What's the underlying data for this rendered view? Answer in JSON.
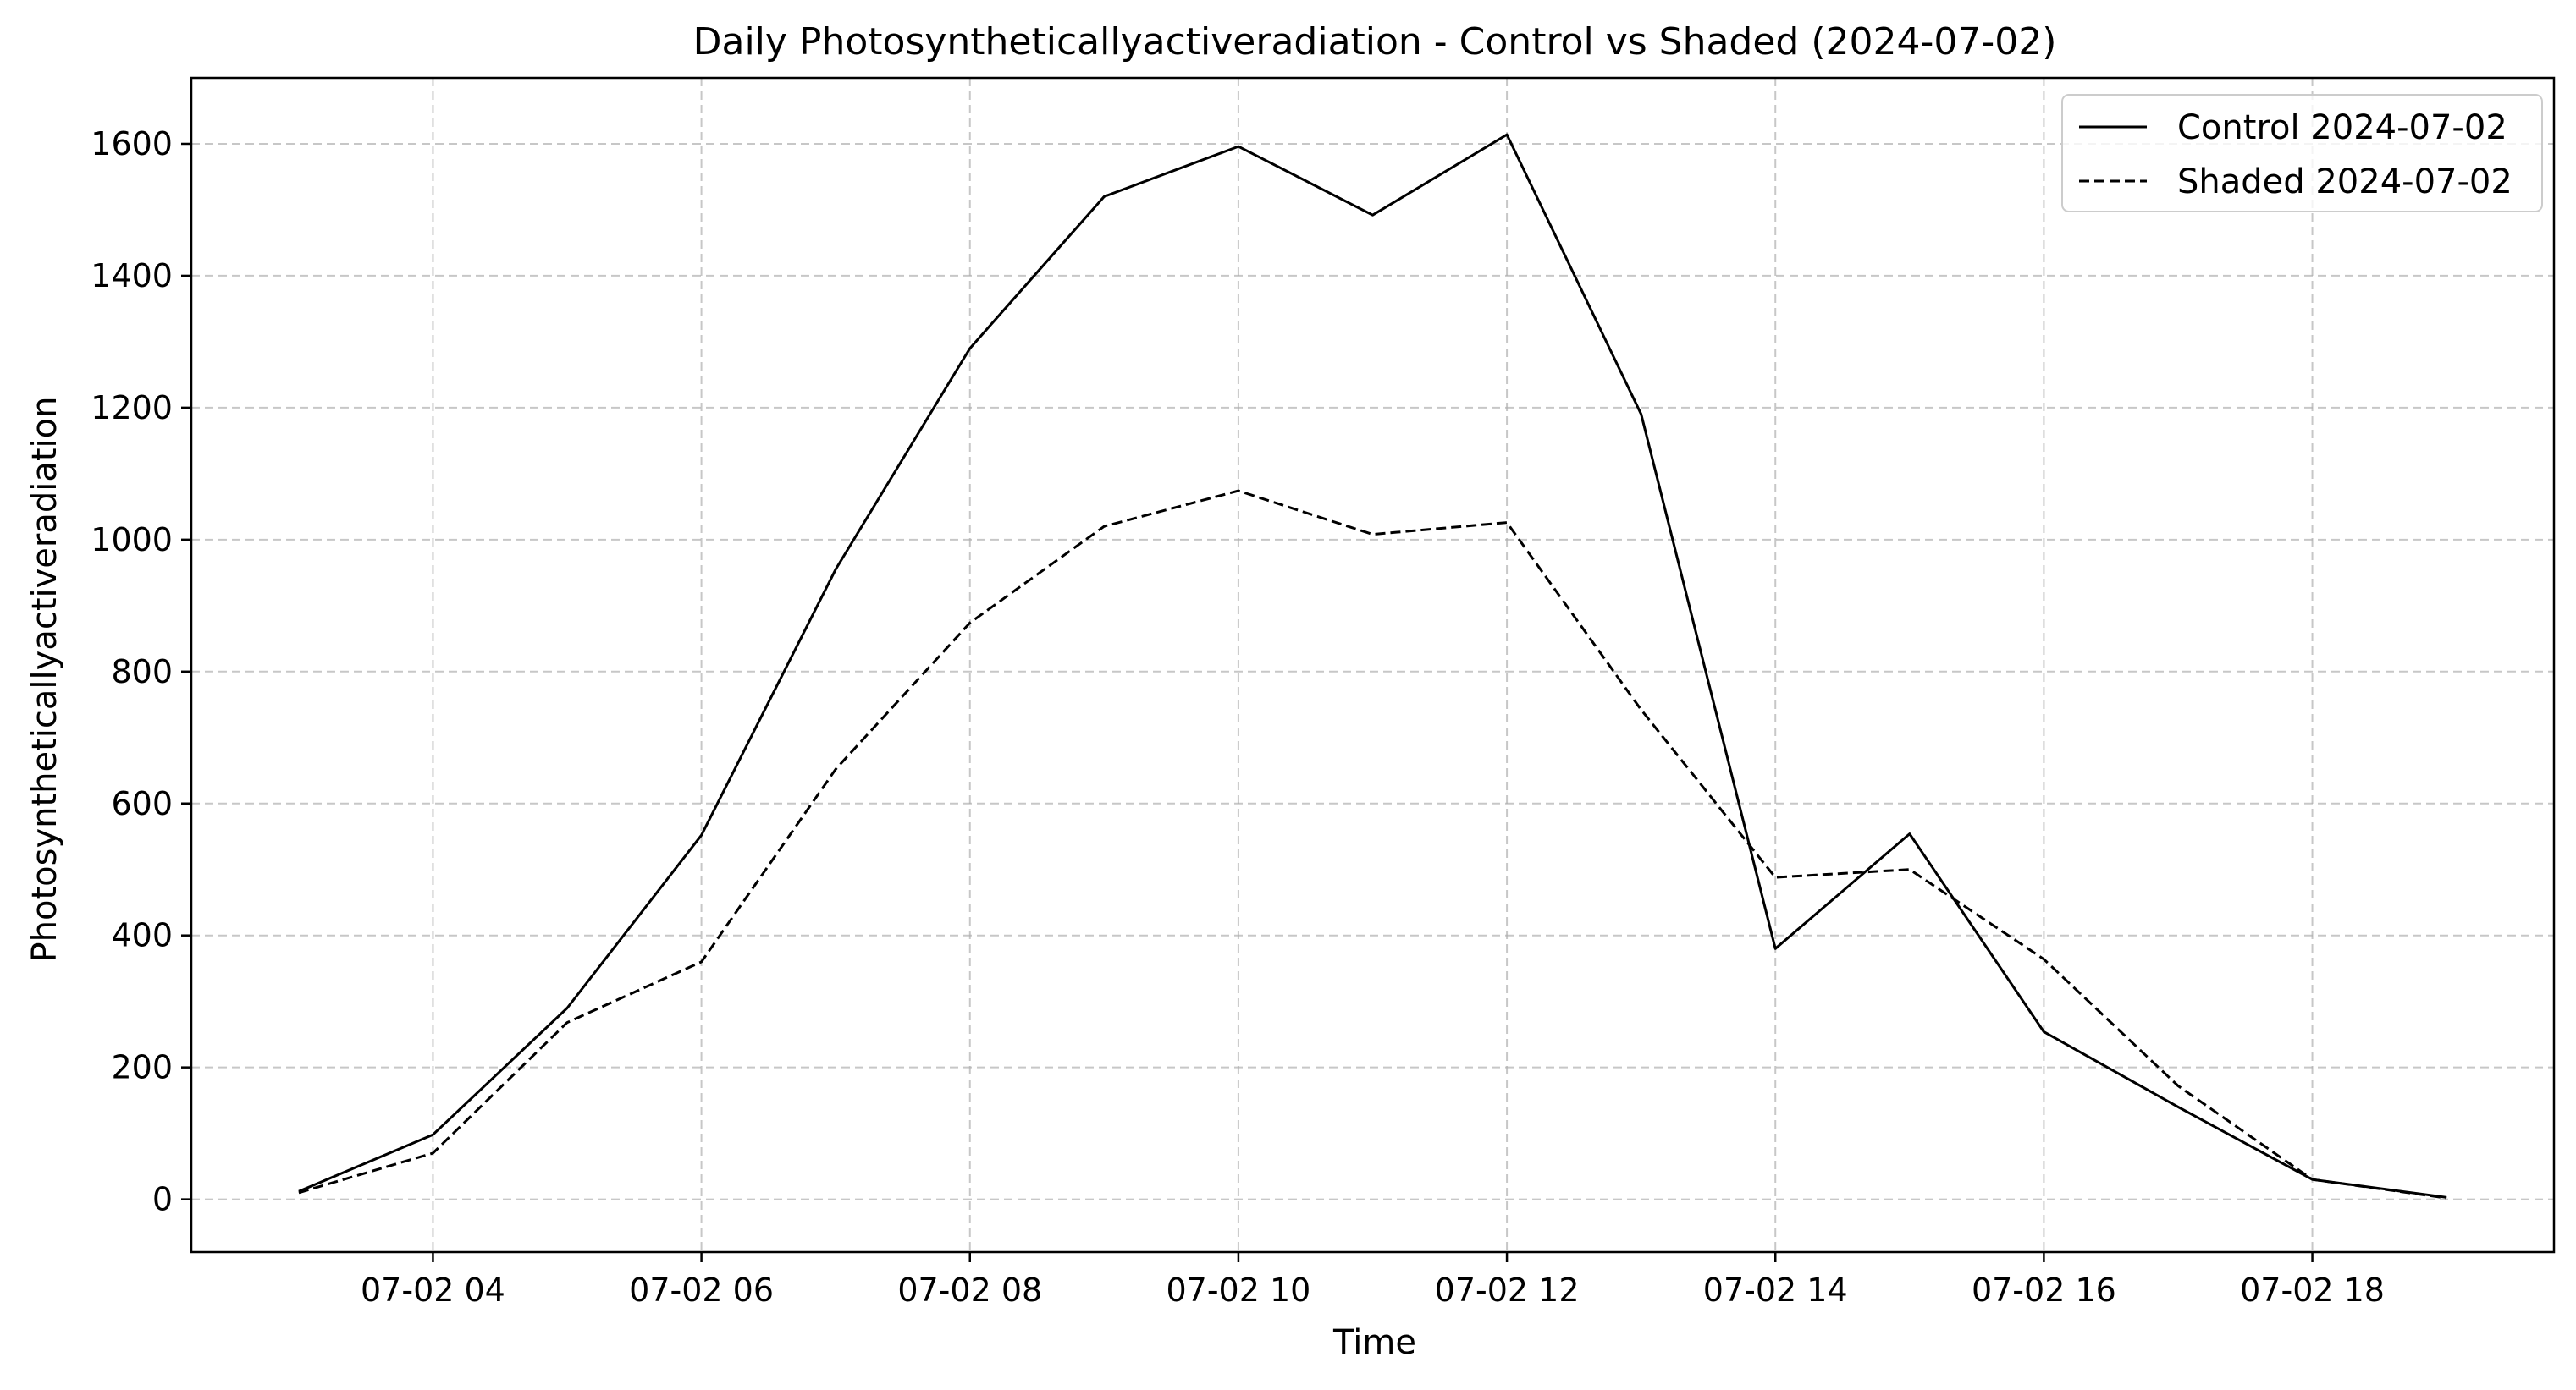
{
  "chart_data": {
    "type": "line",
    "title": "Daily Photosyntheticallyactiveradiation - Control vs Shaded (2024-07-02)",
    "xlabel": "Time",
    "ylabel": "Photosyntheticallyactiveradiation",
    "x": [
      "07-02 03",
      "07-02 04",
      "07-02 05",
      "07-02 06",
      "07-02 07",
      "07-02 08",
      "07-02 09",
      "07-02 10",
      "07-02 11",
      "07-02 12",
      "07-02 13",
      "07-02 14",
      "07-02 15",
      "07-02 16",
      "07-02 17",
      "07-02 18",
      "07-02 19"
    ],
    "x_hours": [
      3,
      4,
      5,
      6,
      7,
      8,
      9,
      10,
      11,
      12,
      13,
      14,
      15,
      16,
      17,
      18,
      19
    ],
    "xlim": [
      2.2,
      19.8
    ],
    "xticks": [
      4,
      6,
      8,
      10,
      12,
      14,
      16,
      18
    ],
    "xtick_labels": [
      "07-02 04",
      "07-02 06",
      "07-02 08",
      "07-02 10",
      "07-02 12",
      "07-02 14",
      "07-02 16",
      "07-02 18"
    ],
    "ylim": [
      -80,
      1700
    ],
    "yticks": [
      0,
      200,
      400,
      600,
      800,
      1000,
      1200,
      1400,
      1600
    ],
    "ytick_labels": [
      "0",
      "200",
      "400",
      "600",
      "800",
      "1000",
      "1200",
      "1400",
      "1600"
    ],
    "grid": true,
    "legend_position": "top-right",
    "series": [
      {
        "name": "Control 2024-07-02",
        "style": "solid",
        "color": "#000000",
        "values": [
          12,
          98,
          290,
          552,
          955,
          1290,
          1520,
          1596,
          1492,
          1614,
          1190,
          380,
          554,
          254,
          140,
          30,
          3
        ]
      },
      {
        "name": "Shaded 2024-07-02",
        "style": "dashed",
        "color": "#000000",
        "values": [
          10,
          70,
          268,
          360,
          652,
          874,
          1020,
          1074,
          1008,
          1026,
          742,
          488,
          500,
          364,
          172,
          30,
          2
        ]
      }
    ]
  }
}
